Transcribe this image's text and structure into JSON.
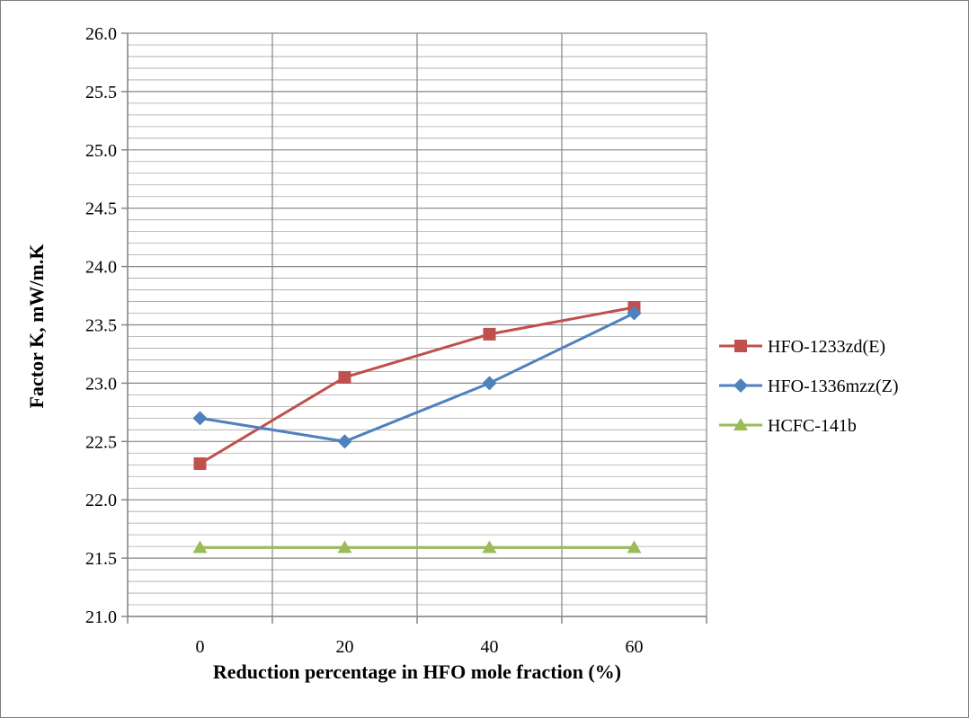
{
  "chart_data": {
    "type": "line",
    "title": "",
    "xlabel": "Reduction percentage in HFO mole fraction (%)",
    "ylabel": "Factor K, mW/m.K",
    "x": [
      0,
      20,
      40,
      60
    ],
    "x_ticks": [
      "0",
      "20",
      "40",
      "60"
    ],
    "ylim": [
      21.0,
      26.0
    ],
    "y_ticks": [
      "21.0",
      "21.5",
      "22.0",
      "22.5",
      "23.0",
      "23.5",
      "24.0",
      "24.5",
      "25.0",
      "25.5",
      "26.0"
    ],
    "grid": true,
    "legend_position": "right",
    "series": [
      {
        "name": "HFO-1233zd(E)",
        "values": [
          22.31,
          23.05,
          23.42,
          23.65
        ],
        "color": "#c0504d",
        "marker": "square"
      },
      {
        "name": "HFO-1336mzz(Z)",
        "values": [
          22.7,
          22.5,
          23.0,
          23.6
        ],
        "color": "#4f81bd",
        "marker": "diamond"
      },
      {
        "name": "HCFC-141b",
        "values": [
          21.59,
          21.59,
          21.59,
          21.59
        ],
        "color": "#9bbb59",
        "marker": "triangle"
      }
    ]
  }
}
